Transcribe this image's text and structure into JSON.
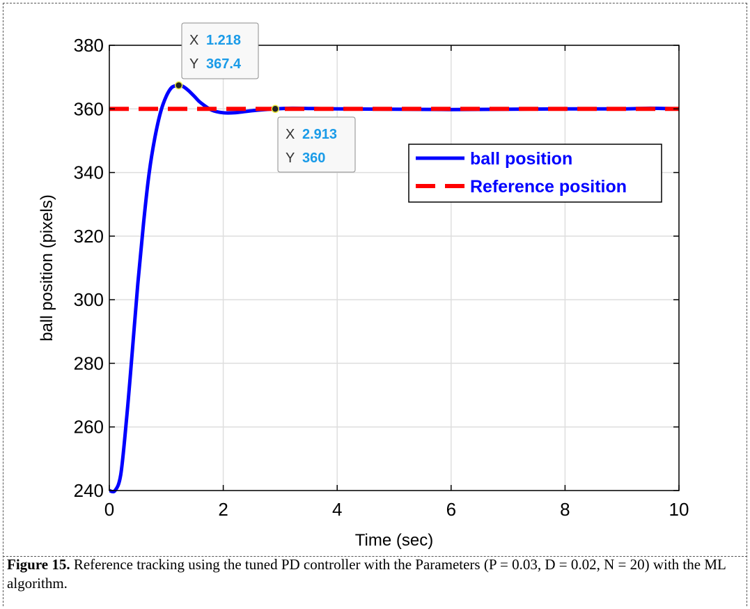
{
  "chart_data": {
    "type": "line",
    "xlabel": "Time (sec)",
    "ylabel": "ball position (pixels)",
    "xlim": [
      0,
      10
    ],
    "ylim": [
      240,
      380
    ],
    "xticks": [
      0,
      2,
      4,
      6,
      8,
      10
    ],
    "yticks": [
      240,
      260,
      280,
      300,
      320,
      340,
      360,
      380
    ],
    "grid": true,
    "legend_position": "top-right",
    "series": [
      {
        "name": "ball position",
        "color": "#0000ff",
        "style": "solid",
        "x": [
          0,
          0.1,
          0.2,
          0.3,
          0.4,
          0.5,
          0.6,
          0.7,
          0.8,
          0.9,
          1.0,
          1.1,
          1.218,
          1.3,
          1.4,
          1.5,
          1.6,
          1.8,
          2.0,
          2.2,
          2.4,
          2.6,
          2.913,
          3.2,
          3.6,
          4.0,
          5.0,
          6.0,
          7.0,
          8.0,
          9.0,
          9.5,
          10.0
        ],
        "y": [
          240,
          240,
          245,
          262,
          283,
          305,
          324,
          340,
          351,
          359,
          364,
          366.8,
          367.4,
          367,
          365.6,
          363.8,
          362,
          359.6,
          358.8,
          358.8,
          359.2,
          359.6,
          360,
          360.2,
          360.1,
          360,
          359.9,
          359.8,
          359.9,
          360,
          360,
          360.2,
          360
        ]
      },
      {
        "name": "Reference position",
        "color": "#ff0000",
        "style": "dashed",
        "x": [
          0,
          10
        ],
        "y": [
          360,
          360
        ]
      }
    ],
    "datatips": [
      {
        "x_key": "X",
        "x_value": "1.218",
        "y_key": "Y",
        "y_value": "367.4",
        "x": 1.218,
        "y": 367.4
      },
      {
        "x_key": "X",
        "x_value": "2.913",
        "y_key": "Y",
        "y_value": "360",
        "x": 2.913,
        "y": 360
      }
    ]
  },
  "caption": {
    "label": "Figure 15.",
    "text": " Reference tracking using the tuned PD controller with the Parameters (P = 0.03, D = 0.02, N = 20) with the ML algorithm."
  }
}
